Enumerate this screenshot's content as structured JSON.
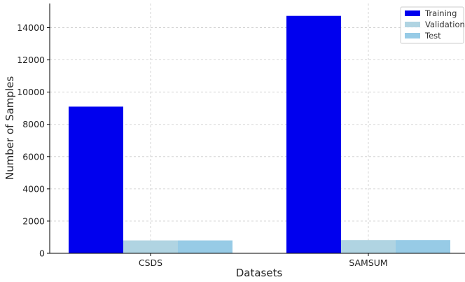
{
  "chart_data": {
    "type": "bar",
    "title": "",
    "xlabel": "Datasets",
    "ylabel": "Number of Samples",
    "categories": [
      "CSDS",
      "SAMSUM"
    ],
    "series": [
      {
        "name": "Training",
        "values": [
          9101,
          14732
        ],
        "color": "#0000ee"
      },
      {
        "name": "Validation",
        "values": [
          800,
          818
        ],
        "color": "#b0d4e2"
      },
      {
        "name": "Test",
        "values": [
          800,
          819
        ],
        "color": "#97cbe6"
      }
    ],
    "ylim": [
      0,
      15500
    ],
    "yticks": [
      0,
      2000,
      4000,
      6000,
      8000,
      10000,
      12000,
      14000
    ],
    "grid": true,
    "legend_position": "top-right"
  }
}
